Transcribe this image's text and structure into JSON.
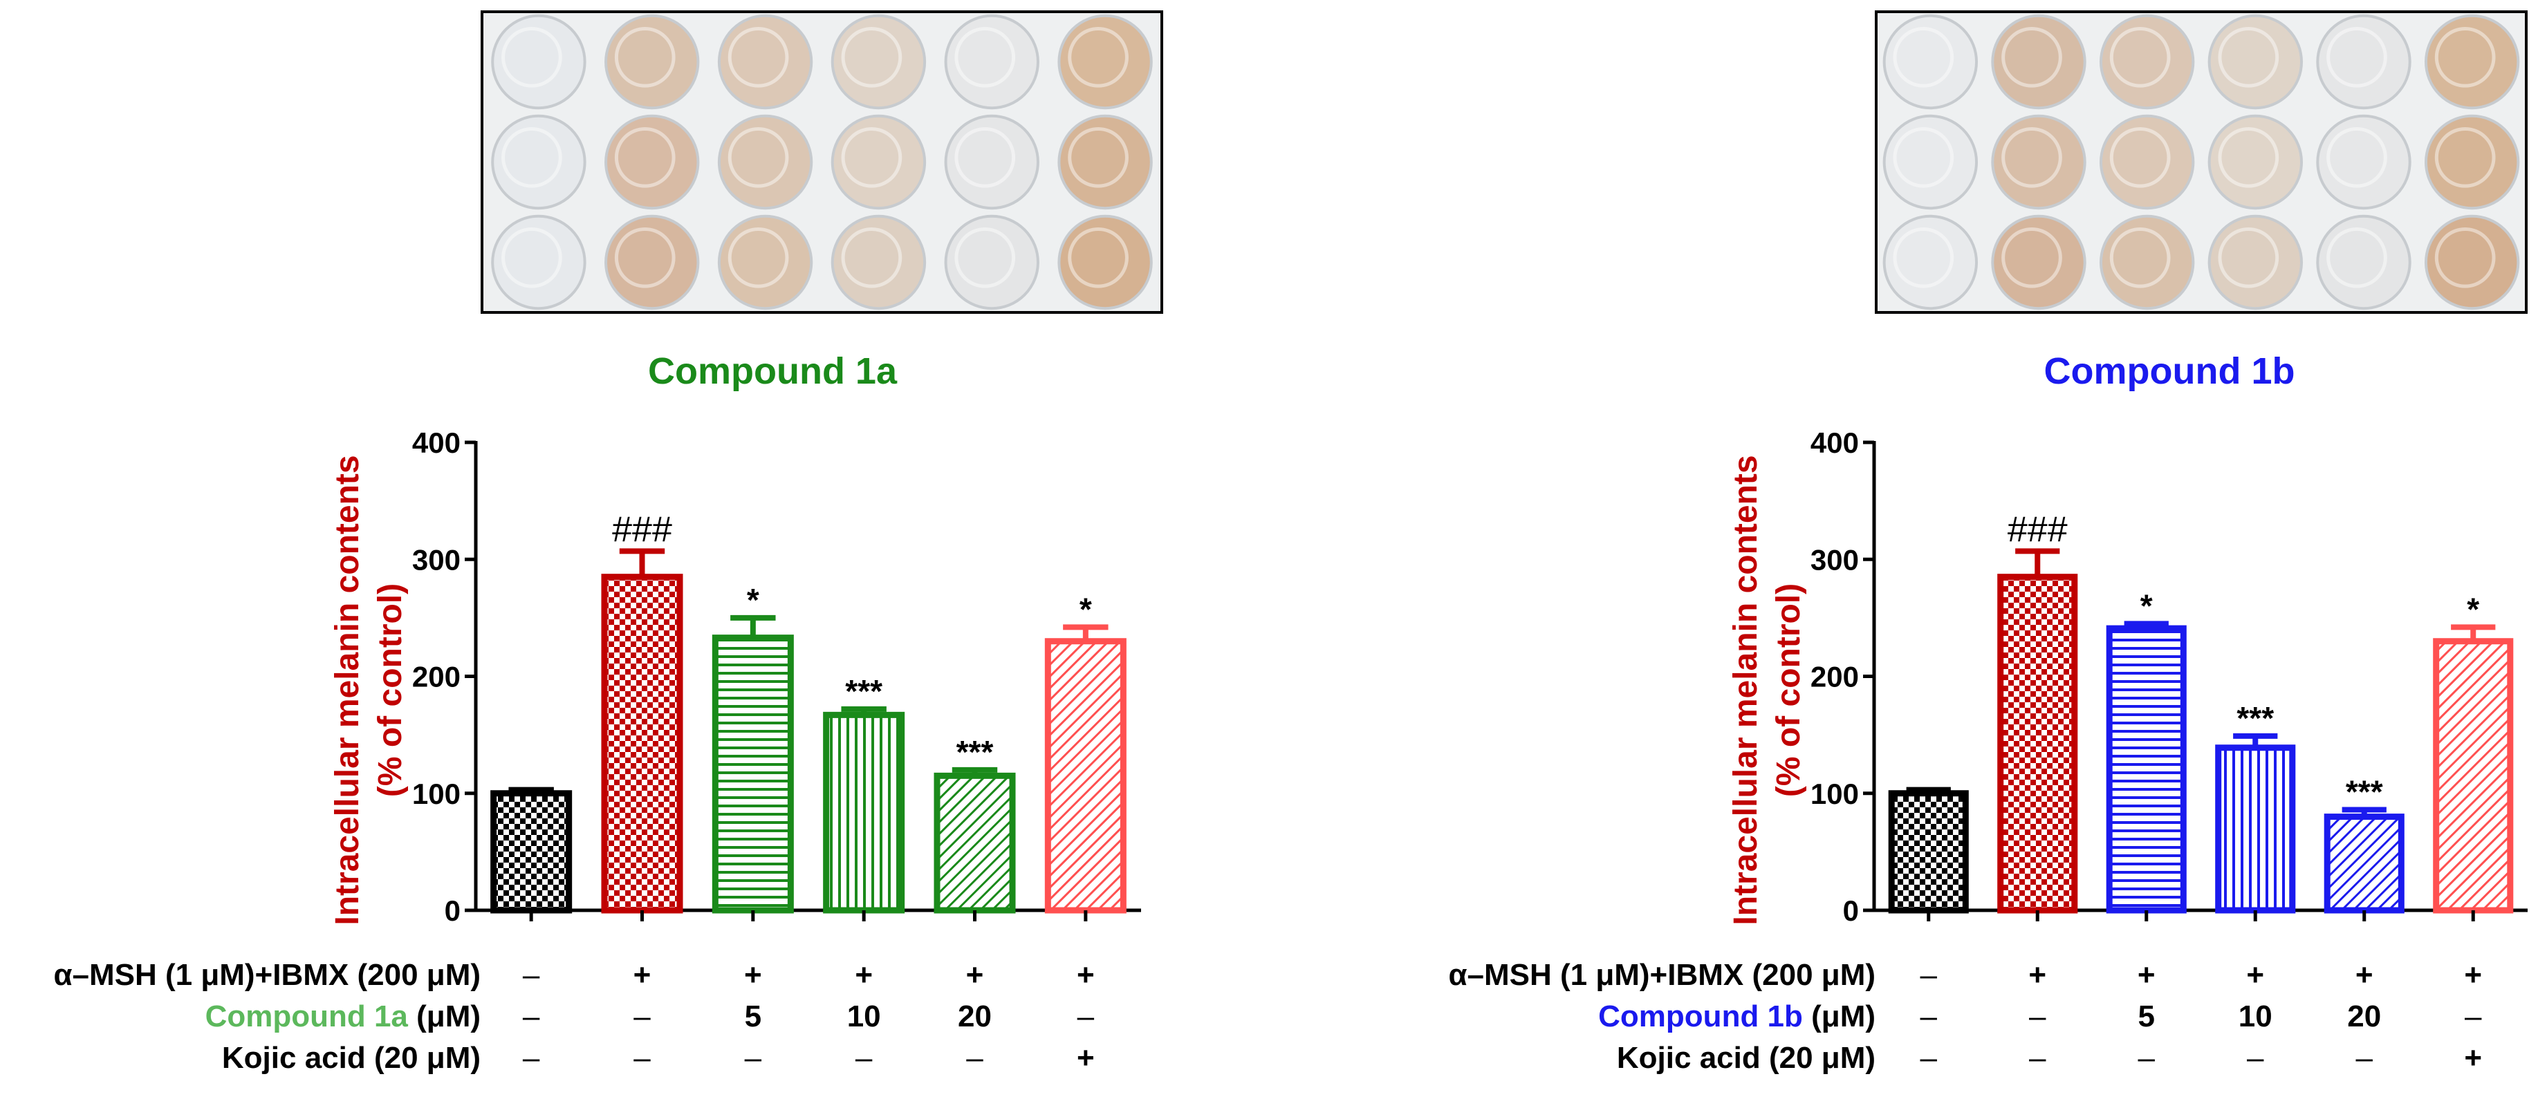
{
  "panels": [
    {
      "compound_label": "Compound 1a",
      "compound_color": "#1a8a1a",
      "compound_row_color": "#5cb85c",
      "plate_colors": [
        [
          "#e6e9ec",
          "#d9c2ad",
          "#dcc8b6",
          "#dfd3c7",
          "#e6e7e8",
          "#d8b99b"
        ],
        [
          "#e6e9ec",
          "#d8bba5",
          "#dbc6b3",
          "#dfd2c5",
          "#e5e6e7",
          "#d6b597"
        ],
        [
          "#e6e9ec",
          "#d6b79f",
          "#dac3ad",
          "#ddcfc1",
          "#e4e5e6",
          "#d5b292"
        ]
      ],
      "rows": [
        {
          "label": "α–MSH (1 μM)+IBMX (200 μM)",
          "values": [
            "–",
            "+",
            "+",
            "+",
            "+",
            "+"
          ]
        },
        {
          "label_main": "Compound 1a",
          "label_unit": " (μM)",
          "values": [
            "–",
            "–",
            "5",
            "10",
            "20",
            "–"
          ]
        },
        {
          "label": "Kojic acid (20 μM)",
          "values": [
            "–",
            "–",
            "–",
            "–",
            "–",
            "+"
          ]
        }
      ]
    },
    {
      "compound_label": "Compound 1b",
      "compound_color": "#1a1aee",
      "compound_row_color": "#1a1aee",
      "plate_colors": [
        [
          "#e8eaec",
          "#d6bca6",
          "#dbc6b4",
          "#dfd4c8",
          "#e5e6e7",
          "#d7b89a"
        ],
        [
          "#e8eaec",
          "#d8bea8",
          "#dcc8b6",
          "#e0d5c9",
          "#e6e7e8",
          "#d6b596"
        ],
        [
          "#e8eaec",
          "#d5b59c",
          "#d9c1ab",
          "#ddcfc1",
          "#e4e5e6",
          "#d4b091"
        ]
      ],
      "rows": [
        {
          "label": "α–MSH (1 μM)+IBMX (200 μM)",
          "values": [
            "–",
            "+",
            "+",
            "+",
            "+",
            "+"
          ]
        },
        {
          "label_main": "Compound 1b",
          "label_unit": " (μM)",
          "values": [
            "–",
            "–",
            "5",
            "10",
            "20",
            "–"
          ]
        },
        {
          "label": "Kojic acid (20 μM)",
          "values": [
            "–",
            "–",
            "–",
            "–",
            "–",
            "+"
          ]
        }
      ]
    }
  ],
  "chart_data": [
    {
      "type": "bar",
      "title": "Compound 1a",
      "ylabel": "Intracellular melanin contents (% of control)",
      "ylabel_lines": [
        "Intracellular melanin contents",
        "(% of control)"
      ],
      "ylim": [
        0,
        400
      ],
      "yticks": [
        0,
        100,
        200,
        300,
        400
      ],
      "bars": [
        {
          "value": 100,
          "error": 3,
          "color": "#000000",
          "pattern": "checker",
          "annotation": ""
        },
        {
          "value": 285,
          "error": 22,
          "color": "#c00000",
          "pattern": "checker",
          "annotation": "###"
        },
        {
          "value": 233,
          "error": 17,
          "color": "#1a8a1a",
          "pattern": "horizontal",
          "annotation": "*"
        },
        {
          "value": 167,
          "error": 5,
          "color": "#1a8a1a",
          "pattern": "vertical",
          "annotation": "***"
        },
        {
          "value": 115,
          "error": 5,
          "color": "#1a8a1a",
          "pattern": "diagonal",
          "annotation": "***"
        },
        {
          "value": 230,
          "error": 12,
          "color": "#ff5050",
          "pattern": "diagonal",
          "annotation": "*"
        }
      ]
    },
    {
      "type": "bar",
      "title": "Compound 1b",
      "ylabel": "Intracellular melanin contents (% of control)",
      "ylabel_lines": [
        "Intracellular melanin contents",
        "(% of control)"
      ],
      "ylim": [
        0,
        400
      ],
      "yticks": [
        0,
        100,
        200,
        300,
        400
      ],
      "bars": [
        {
          "value": 100,
          "error": 3,
          "color": "#000000",
          "pattern": "checker",
          "annotation": ""
        },
        {
          "value": 285,
          "error": 22,
          "color": "#c00000",
          "pattern": "checker",
          "annotation": "###"
        },
        {
          "value": 241,
          "error": 4,
          "color": "#1a1aee",
          "pattern": "horizontal",
          "annotation": "*"
        },
        {
          "value": 139,
          "error": 10,
          "color": "#1a1aee",
          "pattern": "vertical",
          "annotation": "***"
        },
        {
          "value": 80,
          "error": 6,
          "color": "#1a1aee",
          "pattern": "diagonal",
          "annotation": "***"
        },
        {
          "value": 230,
          "error": 12,
          "color": "#ff5050",
          "pattern": "diagonal",
          "annotation": "*"
        }
      ]
    }
  ],
  "ylabel_color": "#c00000"
}
